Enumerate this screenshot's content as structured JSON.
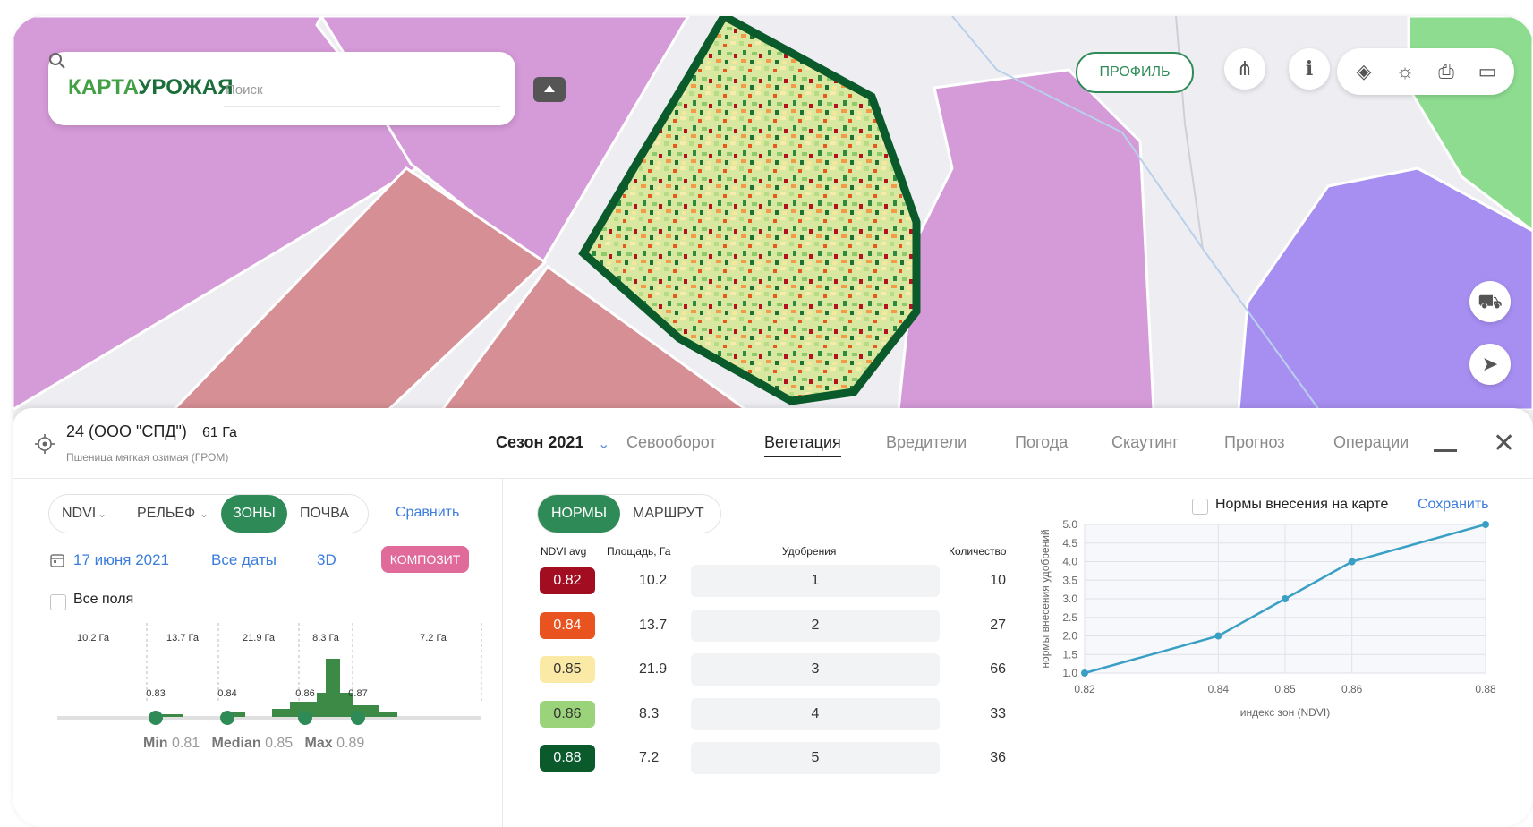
{
  "app": {
    "logo_part1": "КАРТА",
    "logo_part2": "УРОЖАЯ",
    "search_placeholder": "Поиск"
  },
  "map_controls": {
    "profile_label": "ПРОФИЛЬ",
    "wheat_icon": "wheat-icon",
    "info_icon": "info-icon",
    "tools": [
      "layers-icon",
      "weather-icon",
      "print-icon",
      "ruler-icon"
    ],
    "side": [
      "tractor-icon",
      "navigate-icon"
    ]
  },
  "field": {
    "title": "24 (ООО \"СПД\")",
    "area": "61 Га",
    "subtitle": "Пшеница мягкая озимая (ГРОМ)"
  },
  "header": {
    "season": "Сезон 2021",
    "tabs": [
      "Севооборот",
      "Вегетация",
      "Вредители",
      "Погода",
      "Скаутинг",
      "Прогноз",
      "Операции"
    ],
    "active_tab": "Вегетация"
  },
  "left": {
    "segments": [
      "NDVI",
      "РЕЛЬЕФ",
      "ЗОНЫ",
      "ПОЧВА"
    ],
    "active_segment": "ЗОНЫ",
    "compare": "Сравнить",
    "date": "17 июня 2021",
    "all_dates": "Все даты",
    "three_d": "3D",
    "composite": "КОМПОЗИТ",
    "all_fields": "Все поля",
    "histogram": {
      "zone_areas": [
        "10.2 Га",
        "13.7 Га",
        "21.9 Га",
        "8.3 Га",
        "7.2 Га"
      ],
      "markers": [
        "0.83",
        "0.84",
        "0.86",
        "0.87"
      ],
      "min_label": "Min",
      "min_value": "0.81",
      "median_label": "Median",
      "median_value": "0.85",
      "max_label": "Max",
      "max_value": "0.89"
    }
  },
  "right": {
    "segments": [
      "НОРМЫ",
      "МАРШРУТ"
    ],
    "active_segment": "НОРМЫ",
    "map_rates_label": "Нормы внесения на карте",
    "save": "Сохранить",
    "columns": [
      "NDVI avg",
      "Площадь, Га",
      "Удобрения",
      "Количество"
    ],
    "rows": [
      {
        "ndvi": "0.82",
        "area": "10.2",
        "fert": "1",
        "qty": "10",
        "color": "#a30d22",
        "text": "#ffffff"
      },
      {
        "ndvi": "0.84",
        "area": "13.7",
        "fert": "2",
        "qty": "27",
        "color": "#e8531f",
        "text": "#ffffff"
      },
      {
        "ndvi": "0.85",
        "area": "21.9",
        "fert": "3",
        "qty": "66",
        "color": "#fbeaa6",
        "text": "#333333"
      },
      {
        "ndvi": "0.86",
        "area": "8.3",
        "fert": "4",
        "qty": "33",
        "color": "#9bd37a",
        "text": "#333333"
      },
      {
        "ndvi": "0.88",
        "area": "7.2",
        "fert": "5",
        "qty": "36",
        "color": "#0b5a2c",
        "text": "#ffffff"
      }
    ]
  },
  "chart_data": {
    "type": "line",
    "x": [
      0.82,
      0.84,
      0.85,
      0.86,
      0.88
    ],
    "y": [
      1.0,
      2.0,
      3.0,
      4.0,
      5.0
    ],
    "x_ticks": [
      "0.82",
      "0.84",
      "0.85",
      "0.86",
      "0.88"
    ],
    "y_ticks": [
      "1.0",
      "1.5",
      "2.0",
      "2.5",
      "3.0",
      "3.5",
      "4.0",
      "4.5",
      "5.0"
    ],
    "xlabel": "индекс зон (NDVI)",
    "ylabel": "нормы внесения удобрений",
    "ylim": [
      1.0,
      5.0
    ],
    "grid": true,
    "color": "#3a9fc5"
  }
}
